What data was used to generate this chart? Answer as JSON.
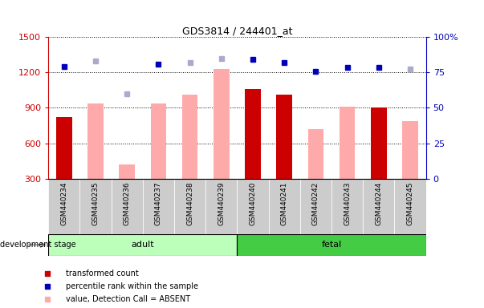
{
  "title": "GDS3814 / 244401_at",
  "samples": [
    "GSM440234",
    "GSM440235",
    "GSM440236",
    "GSM440237",
    "GSM440238",
    "GSM440239",
    "GSM440240",
    "GSM440241",
    "GSM440242",
    "GSM440243",
    "GSM440244",
    "GSM440245"
  ],
  "red_bars": [
    820,
    null,
    null,
    null,
    null,
    null,
    1060,
    1010,
    null,
    null,
    900,
    null
  ],
  "pink_bars": [
    null,
    940,
    420,
    940,
    1010,
    1230,
    null,
    null,
    720,
    910,
    null,
    790
  ],
  "blue_dots_left": [
    1250,
    null,
    null,
    1270,
    null,
    null,
    1310,
    1280,
    1210,
    1240,
    1240,
    null
  ],
  "light_blue_dots_left": [
    null,
    1300,
    1020,
    null,
    1280,
    1320,
    null,
    null,
    null,
    null,
    null,
    1230
  ],
  "ylim_left": [
    300,
    1500
  ],
  "ylim_right": [
    0,
    100
  ],
  "yticks_left": [
    300,
    600,
    900,
    1200,
    1500
  ],
  "yticks_right": [
    0,
    25,
    50,
    75,
    100
  ],
  "bar_width": 0.5,
  "red_color": "#cc0000",
  "pink_color": "#ffaaaa",
  "blue_color": "#0000bb",
  "light_blue_color": "#aaaacc",
  "adult_green_light": "#bbffbb",
  "fetal_green_dark": "#44cc44",
  "sample_box_color": "#cccccc",
  "bg_color": "#ffffff"
}
